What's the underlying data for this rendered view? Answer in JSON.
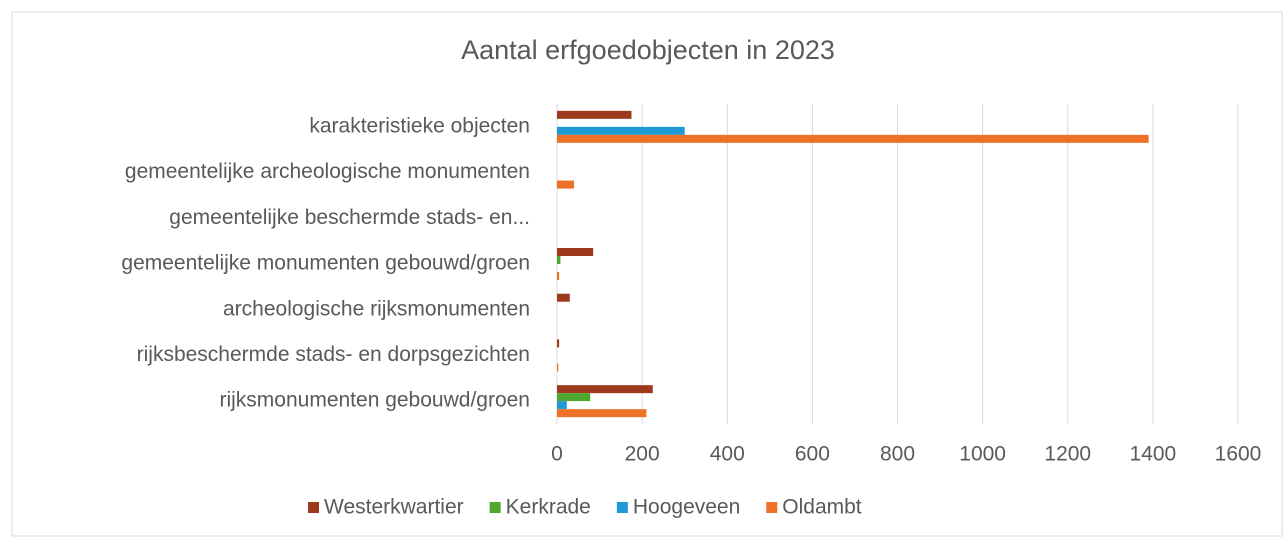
{
  "chart_data": {
    "type": "hbar",
    "title": "Aantal erfgoedobjecten in 2023",
    "categories": [
      "karakteristieke objecten",
      "gemeentelijke archeologische monumenten",
      "gemeentelijke beschermde stads- en...",
      "gemeentelijke monumenten gebouwd/groen",
      "archeologische rijksmonumenten",
      "rijksbeschermde stads- en dorpsgezichten",
      "rijksmonumenten gebouwd/groen"
    ],
    "series": [
      {
        "name": "Westerkwartier",
        "color": "#9e3a1c",
        "values": [
          175,
          0,
          0,
          85,
          30,
          5,
          225
        ]
      },
      {
        "name": "Kerkrade",
        "color": "#4ea72e",
        "values": [
          0,
          0,
          0,
          8,
          0,
          0,
          78
        ]
      },
      {
        "name": "Hoogeveen",
        "color": "#1f9ad6",
        "values": [
          300,
          0,
          0,
          0,
          0,
          0,
          23
        ]
      },
      {
        "name": "Oldambt",
        "color": "#ee7128",
        "values": [
          1390,
          40,
          0,
          5,
          0,
          3,
          210
        ]
      }
    ],
    "xlim": [
      0,
      1600
    ],
    "xticks": [
      0,
      200,
      400,
      600,
      800,
      1000,
      1200,
      1400,
      1600
    ],
    "grid": true,
    "legend": "bottom"
  }
}
